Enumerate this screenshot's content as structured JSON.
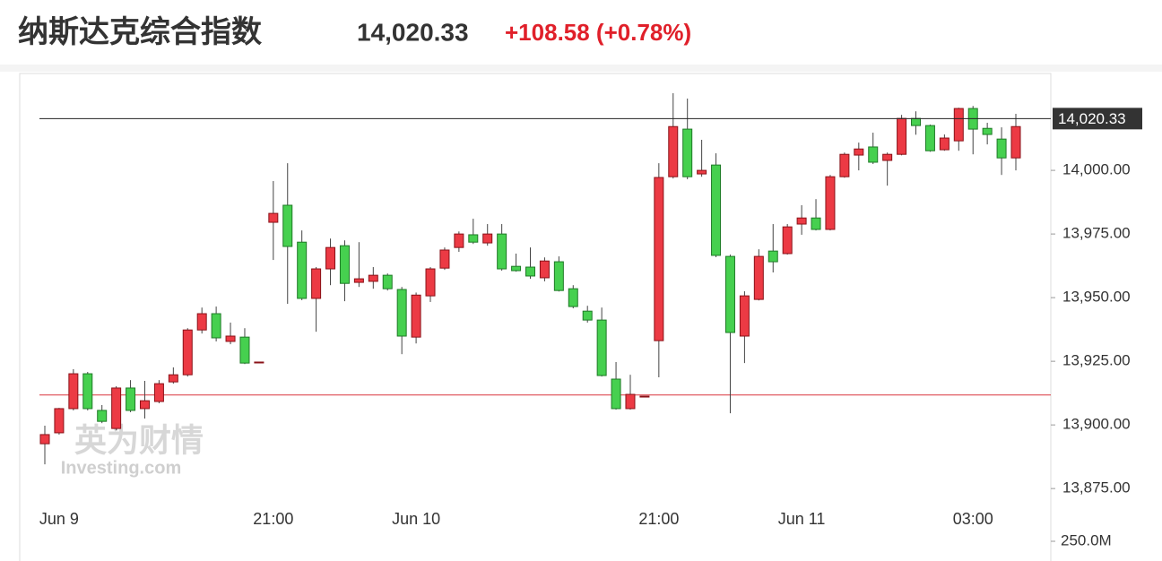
{
  "header": {
    "title": "纳斯达克综合指数",
    "price": "14,020.33",
    "change": "+108.58 (+0.78%)"
  },
  "chart_data": {
    "type": "candlestick",
    "categories": [
      null,
      "Jun 9",
      null,
      null,
      null,
      null,
      null,
      null,
      null,
      null,
      null,
      null,
      null,
      null,
      null,
      null,
      "21:00",
      null,
      null,
      null,
      null,
      null,
      null,
      null,
      null,
      null,
      "Jun 10",
      null,
      null,
      null,
      null,
      null,
      null,
      null,
      null,
      null,
      null,
      null,
      null,
      null,
      null,
      null,
      null,
      "21:00",
      null,
      null,
      null,
      null,
      null,
      null,
      null,
      null,
      null,
      "Jun 11",
      null,
      null,
      null,
      null,
      null,
      null,
      null,
      null,
      null,
      null,
      null,
      "03:00",
      null,
      null,
      null
    ],
    "open": [
      13892.6,
      13896.9,
      13906.4,
      13920.1,
      13905.7,
      13898.6,
      13914.5,
      13906.4,
      13909.2,
      13916.9,
      13919.7,
      13937.3,
      13943.7,
      13932.8,
      13934.5,
      13924.7,
      13979.6,
      13986.3,
      13971.8,
      13949.7,
      13961.3,
      13970.4,
      13956.0,
      13956.4,
      13958.8,
      13953.2,
      13934.5,
      13950.7,
      13961.6,
      13969.7,
      13974.7,
      13971.5,
      13975.0,
      13962.3,
      13962.0,
      13957.8,
      13964.1,
      13953.5,
      13944.7,
      13941.2,
      13918.0,
      13906.4,
      13911.3,
      13933.1,
      13997.5,
      14016.2,
      13998.6,
      14002.1,
      13966.2,
      13934.9,
      13949.3,
      13968.3,
      13967.3,
      13978.9,
      13981.3,
      13976.8,
      13997.5,
      14006.0,
      14009.2,
      14003.9,
      14006.3,
      14020.4,
      14017.6,
      14008.1,
      14011.6,
      14024.3,
      14016.5,
      14012.3,
      14004.9
    ],
    "high": [
      13899.7,
      13906.7,
      13921.9,
      13920.8,
      13907.8,
      13915.2,
      13917.6,
      13917.3,
      13917.6,
      13922.6,
      13938.0,
      13946.1,
      13946.5,
      13940.2,
      13938.0,
      13924.7,
      13995.8,
      14002.8,
      13976.4,
      13962.0,
      13973.2,
      13972.5,
      13971.8,
      13962.0,
      13959.5,
      13954.2,
      13952.0,
      13962.0,
      13969.7,
      13976.0,
      13981.0,
      13978.9,
      13978.9,
      13967.3,
      13969.7,
      13965.8,
      13966.2,
      13954.9,
      13946.8,
      13946.1,
      13924.7,
      13919.7,
      13911.3,
      14002.8,
      14030.3,
      14028.2,
      14012.0,
      14006.7,
      13966.9,
      13952.5,
      13969.0,
      13978.9,
      13978.9,
      13986.3,
      13988.7,
      13998.2,
      14007.0,
      14010.9,
      14014.8,
      14007.0,
      14021.8,
      14023.2,
      14018.0,
      14014.1,
      14024.6,
      14025.3,
      14018.7,
      14016.9,
      14022.2
    ],
    "low": [
      13884.5,
      13896.2,
      13905.7,
      13905.7,
      13900.7,
      13897.9,
      13905.0,
      13902.5,
      13908.5,
      13916.2,
      13919.0,
      13935.9,
      13932.8,
      13931.7,
      13923.9,
      13924.7,
      13964.8,
      13947.6,
      13949.0,
      13936.6,
      13954.9,
      13948.6,
      13954.2,
      13953.5,
      13952.8,
      13927.8,
      13932.0,
      13948.3,
      13960.9,
      13968.0,
      13971.1,
      13970.4,
      13960.6,
      13960.2,
      13957.4,
      13956.4,
      13952.4,
      13945.8,
      13940.2,
      13919.0,
      13906.0,
      13906.0,
      13911.3,
      13918.7,
      13996.8,
      13996.5,
      13997.5,
      13965.9,
      13904.6,
      13924.3,
      13948.9,
      13959.9,
      13966.9,
      13974.7,
      13976.4,
      13976.4,
      13997.1,
      14000.0,
      14002.5,
      13994.0,
      14005.9,
      14014.0,
      14007.3,
      14007.7,
      14007.7,
      14006.3,
      14010.2,
      13998.2,
      14000.0
    ],
    "close": [
      13896.2,
      13906.4,
      13920.1,
      13906.4,
      13901.4,
      13914.5,
      13905.7,
      13909.5,
      13916.2,
      13919.7,
      13937.3,
      13943.7,
      13934.2,
      13934.9,
      13924.3,
      13924.7,
      13983.1,
      13970.1,
      13949.7,
      13961.3,
      13969.7,
      13955.6,
      13957.4,
      13958.8,
      13953.5,
      13934.9,
      13951.0,
      13961.3,
      13968.7,
      13975.0,
      13971.8,
      13975.0,
      13961.3,
      13960.6,
      13958.5,
      13964.4,
      13952.8,
      13946.5,
      13941.2,
      13919.4,
      13906.4,
      13912.0,
      13911.3,
      13997.2,
      14017.2,
      13997.5,
      14000.0,
      13966.6,
      13936.3,
      13950.7,
      13966.2,
      13964.1,
      13977.8,
      13981.3,
      13976.8,
      13997.5,
      14006.3,
      14008.4,
      14003.2,
      14006.3,
      14020.4,
      14017.6,
      14007.7,
      14012.7,
      14024.3,
      14016.2,
      14014.1,
      14004.9,
      14017.2
    ],
    "up_color": "#ec3a44",
    "down_color": "#46d04f",
    "ylim": [
      13874,
      14037
    ],
    "yticks": [
      {
        "value": 13875,
        "label": "13,875.00"
      },
      {
        "value": 13900,
        "label": "13,900.00"
      },
      {
        "value": 13925,
        "label": "13,925.00"
      },
      {
        "value": 13950,
        "label": "13,950.00"
      },
      {
        "value": 13975,
        "label": "13,975.00"
      },
      {
        "value": 14000,
        "label": "14,000.00"
      }
    ],
    "last_price": {
      "value": 14020.33,
      "label": "14,020.33"
    },
    "prev_close": 13911.75,
    "volume_tick": {
      "value": 250000000,
      "label": "250.0M"
    },
    "watermark": {
      "cn": "英为财情",
      "en": "Investing.com"
    },
    "grid": false
  }
}
